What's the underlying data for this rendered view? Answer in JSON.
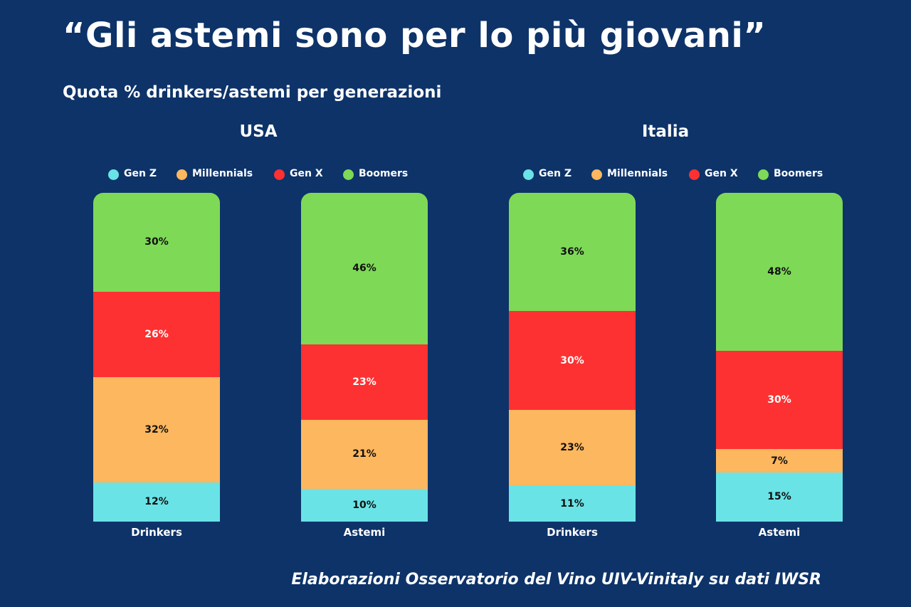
{
  "title": "“Gli astemi sono per lo più giovani”",
  "subtitle": "Quota % drinkers/astemi per generazioni",
  "footer": "Elaborazioni Osservatorio del Vino UIV-Vinitaly su dati IWSR",
  "colors": {
    "Gen Z": "#6ae3e6",
    "Millennials": "#fdb75e",
    "Gen X": "#fd3131",
    "Boomers": "#7ed957",
    "background": "#0d3369"
  },
  "chart_data": [
    {
      "type": "bar",
      "stacked": true,
      "title": "USA",
      "legend": [
        "Gen Z",
        "Millennials",
        "Gen X",
        "Boomers"
      ],
      "categories": [
        "Drinkers",
        "Astemi"
      ],
      "series": [
        {
          "name": "Gen Z",
          "values": [
            12,
            10
          ]
        },
        {
          "name": "Millennials",
          "values": [
            32,
            21
          ]
        },
        {
          "name": "Gen X",
          "values": [
            26,
            23
          ]
        },
        {
          "name": "Boomers",
          "values": [
            30,
            46
          ]
        }
      ],
      "unit": "%",
      "ylim": [
        0,
        100
      ]
    },
    {
      "type": "bar",
      "stacked": true,
      "title": "Italia",
      "legend": [
        "Gen Z",
        "Millennials",
        "Gen X",
        "Boomers"
      ],
      "categories": [
        "Drinkers",
        "Astemi"
      ],
      "series": [
        {
          "name": "Gen Z",
          "values": [
            11,
            15
          ]
        },
        {
          "name": "Millennials",
          "values": [
            23,
            7
          ]
        },
        {
          "name": "Gen X",
          "values": [
            30,
            30
          ]
        },
        {
          "name": "Boomers",
          "values": [
            36,
            48
          ]
        }
      ],
      "unit": "%",
      "ylim": [
        0,
        100
      ]
    }
  ]
}
